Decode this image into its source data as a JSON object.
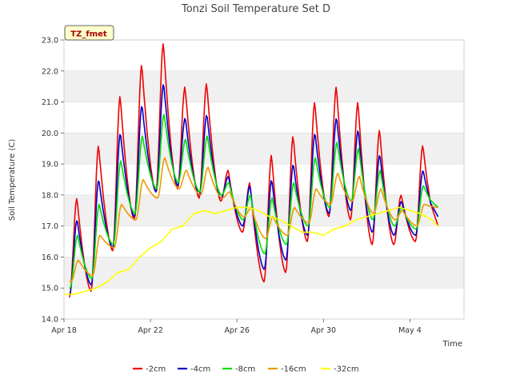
{
  "chart_data": {
    "type": "line",
    "title": "Tonzi Soil Temperature Set D",
    "xlabel": "Time",
    "ylabel": "Soil Temperature (C)",
    "badge": "TZ_fmet",
    "xlim": [
      0,
      18.5
    ],
    "ylim": [
      14.0,
      23.0
    ],
    "xtick_values": [
      0,
      4,
      8,
      12,
      16
    ],
    "xtick_labels": [
      "Apr 18",
      "Apr 22",
      "Apr 26",
      "Apr 30",
      "May 4"
    ],
    "ytick_values": [
      14,
      15,
      16,
      17,
      18,
      19,
      20,
      21,
      22,
      23
    ],
    "ytick_labels": [
      "14.0",
      "15.0",
      "16.0",
      "17.0",
      "18.0",
      "19.0",
      "20.0",
      "21.0",
      "22.0",
      "23.0"
    ],
    "grid": "horizontal-bands",
    "legend_position": "bottom",
    "colors": {
      "-2cm": "#ee0000",
      "-4cm": "#0000cc",
      "-8cm": "#00dd00",
      "-16cm": "#ee9900",
      "-32cm": "#ffff00"
    },
    "series": [
      {
        "name": "-2cm",
        "day_offset": 0.6,
        "mins": [
          14.7,
          14.9,
          16.2,
          17.2,
          18.1,
          18.2,
          17.9,
          17.8,
          16.8,
          15.2,
          15.5,
          16.5,
          17.3,
          17.2,
          16.4,
          16.4,
          16.5
        ],
        "maxs": [
          17.9,
          19.6,
          21.2,
          22.2,
          22.9,
          21.5,
          21.6,
          18.8,
          18.4,
          19.3,
          19.9,
          21.0,
          21.5,
          21.0,
          20.1,
          18.0,
          19.6
        ],
        "end": 17.0
      },
      {
        "name": "-4cm",
        "day_offset": 0.65,
        "mins": [
          14.8,
          15.1,
          16.3,
          17.3,
          18.1,
          18.3,
          18.0,
          17.9,
          17.0,
          15.6,
          15.9,
          16.7,
          17.4,
          17.5,
          16.8,
          16.7,
          16.7
        ],
        "maxs": [
          17.2,
          18.5,
          20.0,
          20.9,
          21.6,
          20.5,
          20.6,
          18.6,
          18.3,
          18.5,
          19.0,
          20.0,
          20.5,
          20.1,
          19.3,
          17.8,
          18.8
        ],
        "end": 17.3
      },
      {
        "name": "-8cm",
        "day_offset": 0.75,
        "mins": [
          15.0,
          15.3,
          16.4,
          17.4,
          18.2,
          18.4,
          18.1,
          18.0,
          17.2,
          16.1,
          16.4,
          17.0,
          17.6,
          17.8,
          17.2,
          17.0,
          16.9
        ],
        "maxs": [
          16.7,
          17.7,
          19.1,
          19.9,
          20.6,
          19.8,
          19.9,
          18.4,
          18.0,
          17.9,
          18.4,
          19.2,
          19.7,
          19.5,
          18.8,
          17.6,
          18.3
        ],
        "end": 17.6
      },
      {
        "name": "-16cm",
        "day_offset": 0.95,
        "mins": [
          15.2,
          15.4,
          16.3,
          17.2,
          17.9,
          18.2,
          18.0,
          17.9,
          17.3,
          16.6,
          16.7,
          17.1,
          17.7,
          17.8,
          17.4,
          17.2,
          17.0
        ],
        "maxs": [
          15.9,
          16.7,
          17.7,
          18.5,
          19.2,
          18.8,
          18.9,
          18.1,
          17.6,
          17.3,
          17.6,
          18.2,
          18.7,
          18.6,
          18.2,
          17.5,
          17.7
        ],
        "end": 17.6
      },
      {
        "name": "-32cm",
        "x": [
          0.0,
          0.5,
          1.0,
          1.5,
          2.0,
          2.5,
          3.0,
          3.5,
          4.0,
          4.5,
          5.0,
          5.5,
          6.0,
          6.5,
          7.0,
          7.5,
          8.0,
          8.5,
          9.0,
          9.5,
          10.0,
          10.5,
          11.0,
          11.5,
          12.0,
          12.5,
          13.0,
          13.5,
          14.0,
          14.5,
          15.0,
          15.5,
          16.0,
          16.5,
          17.0,
          17.3
        ],
        "y": [
          14.8,
          14.8,
          14.9,
          15.0,
          15.2,
          15.5,
          15.6,
          16.0,
          16.3,
          16.5,
          16.9,
          17.0,
          17.4,
          17.5,
          17.4,
          17.5,
          17.6,
          17.6,
          17.5,
          17.3,
          17.2,
          17.0,
          16.8,
          16.8,
          16.7,
          16.9,
          17.0,
          17.2,
          17.3,
          17.4,
          17.5,
          17.6,
          17.5,
          17.4,
          17.2,
          17.0
        ]
      }
    ]
  }
}
